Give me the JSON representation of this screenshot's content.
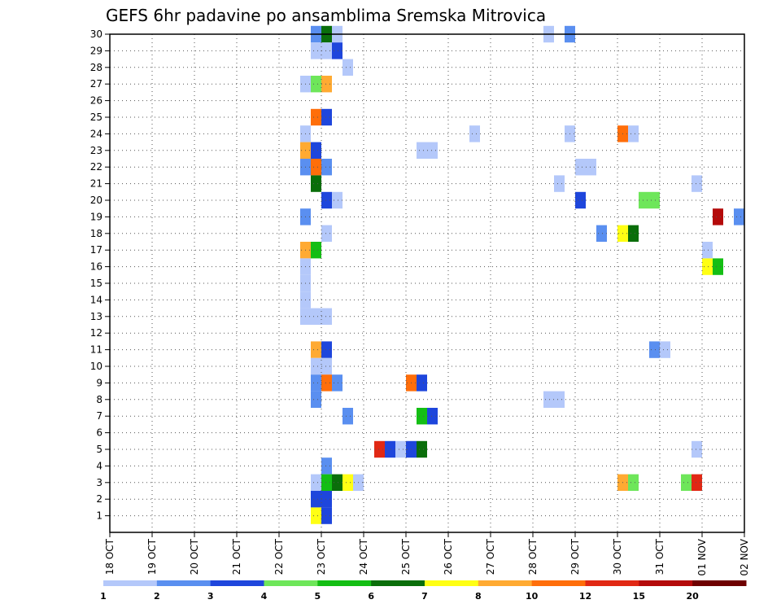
{
  "chart_data": {
    "type": "heatmap",
    "title": "GEFS 6hr padavine po ansamblima Sremska Mitrovica",
    "xlabel": "",
    "ylabel": "",
    "x_ticks": [
      "18 OCT",
      "19 OCT",
      "20 OCT",
      "21 OCT",
      "22 OCT",
      "23 OCT",
      "24 OCT",
      "25 OCT",
      "26 OCT",
      "27 OCT",
      "28 OCT",
      "29 OCT",
      "30 OCT",
      "31 OCT",
      "01 NOV",
      "02 NOV"
    ],
    "y_ticks": [
      "1",
      "2",
      "3",
      "4",
      "5",
      "6",
      "7",
      "8",
      "9",
      "10",
      "11",
      "12",
      "13",
      "14",
      "15",
      "16",
      "17",
      "18",
      "19",
      "20",
      "21",
      "22",
      "23",
      "24",
      "25",
      "26",
      "27",
      "28",
      "29",
      "30"
    ],
    "x_unit": "6-hour steps from 18 OCT",
    "members_range": [
      0,
      30
    ],
    "steps_range": [
      0,
      60
    ],
    "grid": true,
    "legend": "bottom",
    "colorbar": {
      "bounds": [
        1,
        2,
        3,
        4,
        5,
        6,
        7,
        8,
        10,
        12,
        15,
        20
      ],
      "labels": [
        "1",
        "2",
        "3",
        "4",
        "5",
        "6",
        "7",
        "8",
        "10",
        "12",
        "15",
        "20"
      ],
      "colors": [
        "#b4c8fa",
        "#5a8ff0",
        "#1e46dc",
        "#6ee65a",
        "#14be14",
        "#0a6e0a",
        "#ffff14",
        "#ffaa32",
        "#ff6e0a",
        "#e12814",
        "#b40a0a",
        "#6e0000"
      ]
    },
    "cells": [
      {
        "m": 30,
        "s": 19,
        "c": 1
      },
      {
        "m": 30,
        "s": 20,
        "c": 5
      },
      {
        "m": 30,
        "s": 21,
        "c": 0
      },
      {
        "m": 30,
        "s": 41,
        "c": 0
      },
      {
        "m": 30,
        "s": 43,
        "c": 1
      },
      {
        "m": 29,
        "s": 19,
        "c": 0
      },
      {
        "m": 29,
        "s": 20,
        "c": 0
      },
      {
        "m": 29,
        "s": 21,
        "c": 2
      },
      {
        "m": 28,
        "s": 22,
        "c": 0
      },
      {
        "m": 27,
        "s": 18,
        "c": 0
      },
      {
        "m": 27,
        "s": 19,
        "c": 3
      },
      {
        "m": 27,
        "s": 20,
        "c": 7
      },
      {
        "m": 25,
        "s": 19,
        "c": 8
      },
      {
        "m": 25,
        "s": 20,
        "c": 2
      },
      {
        "m": 24,
        "s": 18,
        "c": 0
      },
      {
        "m": 24,
        "s": 34,
        "c": 0
      },
      {
        "m": 24,
        "s": 43,
        "c": 0
      },
      {
        "m": 24,
        "s": 48,
        "c": 8
      },
      {
        "m": 24,
        "s": 49,
        "c": 0
      },
      {
        "m": 23,
        "s": 18,
        "c": 7
      },
      {
        "m": 23,
        "s": 19,
        "c": 2
      },
      {
        "m": 23,
        "s": 29,
        "c": 0
      },
      {
        "m": 23,
        "s": 30,
        "c": 0
      },
      {
        "m": 22,
        "s": 18,
        "c": 1
      },
      {
        "m": 22,
        "s": 19,
        "c": 8
      },
      {
        "m": 22,
        "s": 20,
        "c": 1
      },
      {
        "m": 22,
        "s": 44,
        "c": 0
      },
      {
        "m": 22,
        "s": 45,
        "c": 0
      },
      {
        "m": 21,
        "s": 19,
        "c": 5
      },
      {
        "m": 21,
        "s": 42,
        "c": 0
      },
      {
        "m": 21,
        "s": 55,
        "c": 0
      },
      {
        "m": 20,
        "s": 20,
        "c": 2
      },
      {
        "m": 20,
        "s": 21,
        "c": 0
      },
      {
        "m": 20,
        "s": 44,
        "c": 2
      },
      {
        "m": 20,
        "s": 50,
        "c": 3
      },
      {
        "m": 20,
        "s": 51,
        "c": 3
      },
      {
        "m": 19,
        "s": 18,
        "c": 1
      },
      {
        "m": 19,
        "s": 57,
        "c": 10
      },
      {
        "m": 19,
        "s": 59,
        "c": 1
      },
      {
        "m": 18,
        "s": 20,
        "c": 0
      },
      {
        "m": 18,
        "s": 46,
        "c": 1
      },
      {
        "m": 18,
        "s": 48,
        "c": 6
      },
      {
        "m": 18,
        "s": 49,
        "c": 5
      },
      {
        "m": 17,
        "s": 18,
        "c": 7
      },
      {
        "m": 17,
        "s": 19,
        "c": 4
      },
      {
        "m": 17,
        "s": 56,
        "c": 0
      },
      {
        "m": 16,
        "s": 18,
        "c": 0
      },
      {
        "m": 16,
        "s": 56,
        "c": 6
      },
      {
        "m": 16,
        "s": 57,
        "c": 4
      },
      {
        "m": 15,
        "s": 18,
        "c": 0
      },
      {
        "m": 14,
        "s": 18,
        "c": 0
      },
      {
        "m": 13,
        "s": 18,
        "c": 0
      },
      {
        "m": 13,
        "s": 19,
        "c": 0
      },
      {
        "m": 13,
        "s": 20,
        "c": 0
      },
      {
        "m": 11,
        "s": 19,
        "c": 7
      },
      {
        "m": 11,
        "s": 20,
        "c": 2
      },
      {
        "m": 11,
        "s": 51,
        "c": 1
      },
      {
        "m": 11,
        "s": 52,
        "c": 0
      },
      {
        "m": 10,
        "s": 19,
        "c": 0
      },
      {
        "m": 10,
        "s": 20,
        "c": 0
      },
      {
        "m": 9,
        "s": 19,
        "c": 1
      },
      {
        "m": 9,
        "s": 20,
        "c": 8
      },
      {
        "m": 9,
        "s": 21,
        "c": 1
      },
      {
        "m": 9,
        "s": 28,
        "c": 8
      },
      {
        "m": 9,
        "s": 29,
        "c": 2
      },
      {
        "m": 8,
        "s": 19,
        "c": 1
      },
      {
        "m": 8,
        "s": 41,
        "c": 0
      },
      {
        "m": 8,
        "s": 42,
        "c": 0
      },
      {
        "m": 7,
        "s": 22,
        "c": 1
      },
      {
        "m": 7,
        "s": 29,
        "c": 4
      },
      {
        "m": 7,
        "s": 30,
        "c": 2
      },
      {
        "m": 5,
        "s": 25,
        "c": 9
      },
      {
        "m": 5,
        "s": 26,
        "c": 2
      },
      {
        "m": 5,
        "s": 27,
        "c": 0
      },
      {
        "m": 5,
        "s": 28,
        "c": 2
      },
      {
        "m": 5,
        "s": 29,
        "c": 5
      },
      {
        "m": 5,
        "s": 55,
        "c": 0
      },
      {
        "m": 4,
        "s": 20,
        "c": 1
      },
      {
        "m": 3,
        "s": 19,
        "c": 0
      },
      {
        "m": 3,
        "s": 20,
        "c": 4
      },
      {
        "m": 3,
        "s": 21,
        "c": 5
      },
      {
        "m": 3,
        "s": 22,
        "c": 6
      },
      {
        "m": 3,
        "s": 23,
        "c": 0
      },
      {
        "m": 3,
        "s": 48,
        "c": 7
      },
      {
        "m": 3,
        "s": 49,
        "c": 3
      },
      {
        "m": 3,
        "s": 54,
        "c": 3
      },
      {
        "m": 3,
        "s": 55,
        "c": 9
      },
      {
        "m": 2,
        "s": 19,
        "c": 2
      },
      {
        "m": 2,
        "s": 20,
        "c": 2
      },
      {
        "m": 1,
        "s": 19,
        "c": 6
      },
      {
        "m": 1,
        "s": 20,
        "c": 2
      }
    ]
  }
}
